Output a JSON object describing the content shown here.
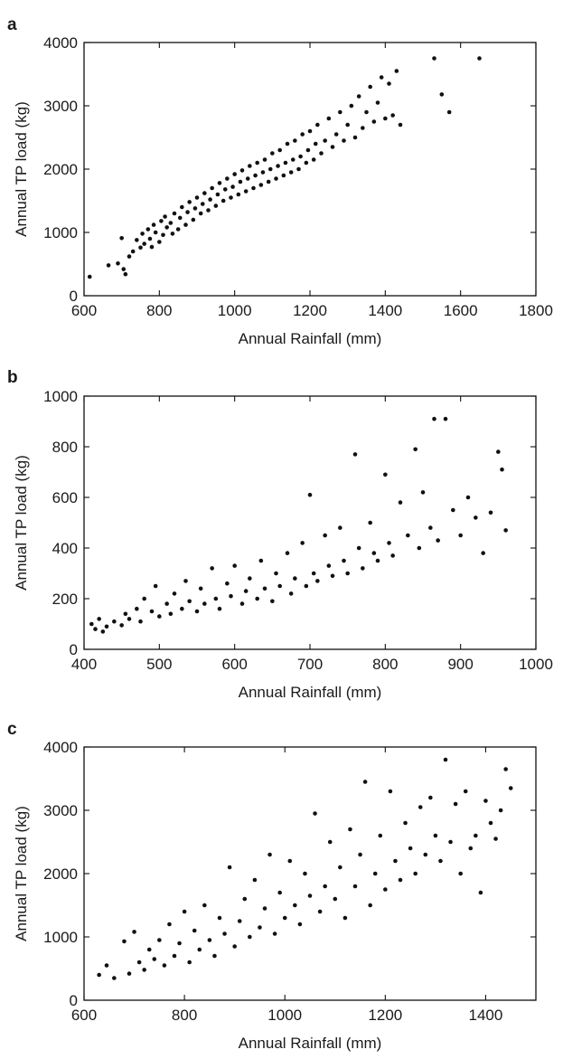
{
  "chart_data": [
    {
      "panel": "a",
      "type": "scatter",
      "xlabel": "Annual Rainfall (mm)",
      "ylabel": "Annual TP load (kg)",
      "xlim": [
        600,
        1800
      ],
      "ylim": [
        0,
        4000
      ],
      "xticks": [
        600,
        800,
        1000,
        1200,
        1400,
        1600,
        1800
      ],
      "yticks": [
        0,
        1000,
        2000,
        3000,
        4000
      ],
      "grid": false,
      "color": "#111111",
      "series": [
        {
          "x": [
            615,
            665,
            690,
            700,
            705,
            710,
            720,
            730,
            740,
            750,
            755,
            760,
            770,
            775,
            780,
            785,
            790,
            800,
            805,
            810,
            815,
            820,
            830,
            835,
            840,
            850,
            855,
            860,
            870,
            875,
            880,
            890,
            895,
            900,
            910,
            915,
            920,
            930,
            935,
            940,
            950,
            955,
            960,
            970,
            975,
            980,
            990,
            995,
            1000,
            1010,
            1015,
            1020,
            1030,
            1035,
            1040,
            1050,
            1055,
            1060,
            1070,
            1075,
            1080,
            1090,
            1095,
            1100,
            1110,
            1115,
            1120,
            1130,
            1135,
            1140,
            1150,
            1155,
            1160,
            1170,
            1175,
            1180,
            1190,
            1195,
            1200,
            1210,
            1215,
            1220,
            1230,
            1240,
            1250,
            1260,
            1270,
            1280,
            1290,
            1300,
            1310,
            1320,
            1330,
            1340,
            1350,
            1360,
            1370,
            1380,
            1390,
            1400,
            1410,
            1420,
            1430,
            1440,
            1530,
            1550,
            1570,
            1650
          ],
          "y": [
            300,
            480,
            510,
            910,
            420,
            340,
            620,
            700,
            880,
            760,
            980,
            820,
            1050,
            900,
            770,
            1120,
            1000,
            850,
            1180,
            960,
            1250,
            1080,
            1150,
            980,
            1300,
            1050,
            1230,
            1400,
            1120,
            1320,
            1480,
            1200,
            1380,
            1550,
            1300,
            1450,
            1620,
            1350,
            1520,
            1700,
            1420,
            1600,
            1780,
            1500,
            1680,
            1850,
            1550,
            1720,
            1920,
            1600,
            1800,
            1980,
            1650,
            1850,
            2050,
            1700,
            1900,
            2100,
            1750,
            1950,
            2150,
            1800,
            2000,
            2250,
            1850,
            2050,
            2300,
            1900,
            2100,
            2400,
            1950,
            2150,
            2450,
            2000,
            2200,
            2550,
            2100,
            2300,
            2600,
            2150,
            2400,
            2700,
            2250,
            2450,
            2800,
            2350,
            2550,
            2900,
            2450,
            2700,
            3000,
            2500,
            3150,
            2650,
            2900,
            3300,
            2750,
            3050,
            3450,
            2800,
            3350,
            2850,
            3550,
            2700,
            3750,
            3180,
            2900,
            3750
          ]
        }
      ]
    },
    {
      "panel": "b",
      "type": "scatter",
      "xlabel": "Annual Rainfall (mm)",
      "ylabel": "Annual TP load (kg)",
      "xlim": [
        400,
        1000
      ],
      "ylim": [
        0,
        1000
      ],
      "xticks": [
        400,
        500,
        600,
        700,
        800,
        900,
        1000
      ],
      "yticks": [
        0,
        200,
        400,
        600,
        800,
        1000
      ],
      "grid": false,
      "color": "#111111",
      "series": [
        {
          "x": [
            410,
            415,
            420,
            425,
            430,
            440,
            450,
            455,
            460,
            470,
            475,
            480,
            490,
            495,
            500,
            510,
            515,
            520,
            530,
            535,
            540,
            550,
            555,
            560,
            570,
            575,
            580,
            590,
            595,
            600,
            610,
            615,
            620,
            630,
            635,
            640,
            650,
            655,
            660,
            670,
            675,
            680,
            690,
            695,
            700,
            705,
            710,
            720,
            725,
            730,
            740,
            745,
            750,
            760,
            765,
            770,
            780,
            785,
            790,
            800,
            805,
            810,
            820,
            830,
            840,
            845,
            850,
            860,
            865,
            870,
            880,
            890,
            900,
            910,
            920,
            930,
            940,
            950,
            955,
            960
          ],
          "y": [
            100,
            80,
            120,
            70,
            90,
            110,
            95,
            140,
            120,
            160,
            110,
            200,
            150,
            250,
            130,
            180,
            140,
            220,
            160,
            270,
            190,
            150,
            240,
            180,
            320,
            200,
            160,
            260,
            210,
            330,
            180,
            230,
            280,
            200,
            350,
            240,
            190,
            300,
            250,
            380,
            220,
            280,
            420,
            250,
            610,
            300,
            270,
            450,
            330,
            290,
            480,
            350,
            300,
            770,
            400,
            320,
            500,
            380,
            350,
            690,
            420,
            370,
            580,
            450,
            790,
            400,
            620,
            480,
            910,
            430,
            910,
            550,
            450,
            600,
            520,
            380,
            540,
            780,
            710,
            470
          ]
        }
      ]
    },
    {
      "panel": "c",
      "type": "scatter",
      "xlabel": "Annual Rainfall (mm)",
      "ylabel": "Annual TP load (kg)",
      "xlim": [
        600,
        1500
      ],
      "ylim": [
        0,
        4000
      ],
      "xticks": [
        600,
        800,
        1000,
        1200,
        1400
      ],
      "yticks": [
        0,
        1000,
        2000,
        3000,
        4000
      ],
      "grid": false,
      "color": "#111111",
      "series": [
        {
          "x": [
            630,
            645,
            660,
            680,
            690,
            700,
            710,
            720,
            730,
            740,
            750,
            760,
            770,
            780,
            790,
            800,
            810,
            820,
            830,
            840,
            850,
            860,
            870,
            880,
            890,
            900,
            910,
            920,
            930,
            940,
            950,
            960,
            970,
            980,
            990,
            1000,
            1010,
            1020,
            1030,
            1040,
            1050,
            1060,
            1070,
            1080,
            1090,
            1100,
            1110,
            1120,
            1130,
            1140,
            1150,
            1160,
            1170,
            1180,
            1190,
            1200,
            1210,
            1220,
            1230,
            1240,
            1250,
            1260,
            1270,
            1280,
            1290,
            1300,
            1310,
            1320,
            1330,
            1340,
            1350,
            1360,
            1370,
            1380,
            1390,
            1400,
            1410,
            1420,
            1430,
            1440,
            1450
          ],
          "y": [
            400,
            550,
            350,
            930,
            420,
            1080,
            600,
            480,
            800,
            650,
            950,
            550,
            1200,
            700,
            900,
            1400,
            600,
            1100,
            800,
            1500,
            950,
            700,
            1300,
            1050,
            2100,
            850,
            1250,
            1600,
            1000,
            1900,
            1150,
            1450,
            2300,
            1050,
            1700,
            1300,
            2200,
            1500,
            1200,
            2000,
            1650,
            2950,
            1400,
            1800,
            2500,
            1600,
            2100,
            1300,
            2700,
            1800,
            2300,
            3450,
            1500,
            2000,
            2600,
            1750,
            3300,
            2200,
            1900,
            2800,
            2400,
            2000,
            3050,
            2300,
            3200,
            2600,
            2200,
            3800,
            2500,
            3100,
            2000,
            3300,
            2400,
            2600,
            1700,
            3150,
            2800,
            2550,
            3000,
            3650,
            3350
          ]
        }
      ]
    }
  ]
}
